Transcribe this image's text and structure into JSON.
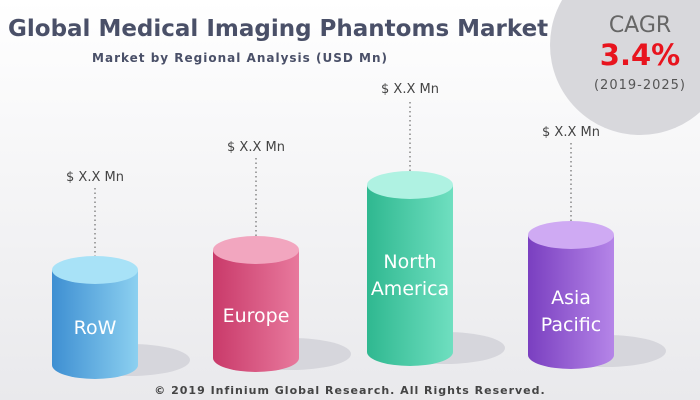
{
  "title": "Global Medical Imaging Phantoms Market",
  "subtitle": "Market by Regional Analysis (USD Mn)",
  "cagr": {
    "label": "CAGR",
    "value": "3.4%",
    "period": "(2019-2025)"
  },
  "regions": [
    {
      "name": "RoW",
      "value_label": "$ X.X Mn"
    },
    {
      "name": "Europe",
      "value_label": "$ X.X Mn"
    },
    {
      "name": "North America",
      "value_label": "$ X.X Mn"
    },
    {
      "name": "Asia Pacific",
      "value_label": "$ X.X Mn"
    }
  ],
  "footer": "© 2019 Infinium Global Research. All Rights Reserved."
}
